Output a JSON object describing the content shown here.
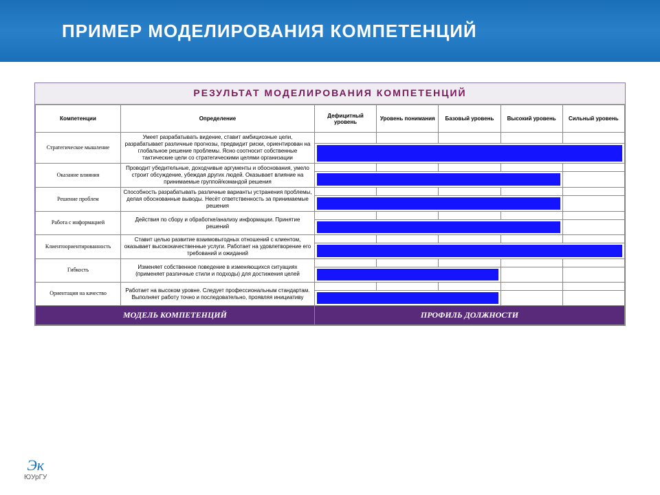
{
  "header": {
    "title": "ПРИМЕР МОДЕЛИРОВАНИЯ КОМПЕТЕНЦИЙ"
  },
  "table": {
    "title": "РЕЗУЛЬТАТ МОДЕЛИРОВАНИЯ КОМПЕТЕНЦИЙ",
    "columns": {
      "competency": "Компетенции",
      "definition": "Определение",
      "levels": [
        "Дефицитный уровень",
        "Уровень понимания",
        "Базовый уровень",
        "Высокий уровень",
        "Сильный уровень"
      ]
    },
    "level_count": 5,
    "rows": [
      {
        "name": "Стратегическое мышление",
        "definition": "Умеет разрабатывать видение, ставит амбициозные цели, разрабатывает различные прогнозы, предвидит риски, ориентирован на глобальное решение проблемы. Ясно соотносит собственные тактические цели со стратегическими целями организации",
        "bar_span": 5
      },
      {
        "name": "Оказание влияния",
        "definition": "Проводит убедительные, доходчивые аргументы и обоснования, умело строит обсуждение, убеждая других людей. Оказывает влияние на принимаемые группой/командой решения",
        "bar_span": 4
      },
      {
        "name": "Решение проблем",
        "definition": "Способность разрабатывать различные варианты устранения проблемы, делая обоснованные выводы. Несёт ответственность за принимаемые решения",
        "bar_span": 4
      },
      {
        "name": "Работа с информацией",
        "definition": "Действия по сбору и обработке/анализу информации. Принятие решений",
        "bar_span": 4
      },
      {
        "name": "Клиентоориентированность",
        "definition": "Ставит целью развитие взаимовыгодных отношений с клиентом, оказывает высококачественные услуги. Работает на удовлетворение его требований и ожиданий",
        "bar_span": 5
      },
      {
        "name": "Гибкость",
        "definition": "Изменяет собственное поведение в изменяющихся ситуациях (применяет различные стили и подходы) для достижения целей",
        "bar_span": 3
      },
      {
        "name": "Ориентация на качество",
        "definition": "Работает на высоком уровне. Следует профессиональным стандартам. Выполняет работу точно и последовательно, проявляя инициативу",
        "bar_span": 3
      }
    ],
    "footer": {
      "left": "МОДЕЛЬ КОМПЕТЕНЦИЙ",
      "right": "ПРОФИЛЬ ДОЛЖНОСТИ"
    }
  },
  "logo": {
    "mark": "Эк",
    "text": "ЮУрГУ"
  },
  "colors": {
    "header_gradient_top": "#1a6fb8",
    "header_gradient_mid": "#2980c9",
    "title_text": "#7a1a5a",
    "bar_fill": "#1414ff",
    "footer_bg": "#5a2a7a",
    "footer_text": "#ffffff",
    "border": "#888888"
  }
}
